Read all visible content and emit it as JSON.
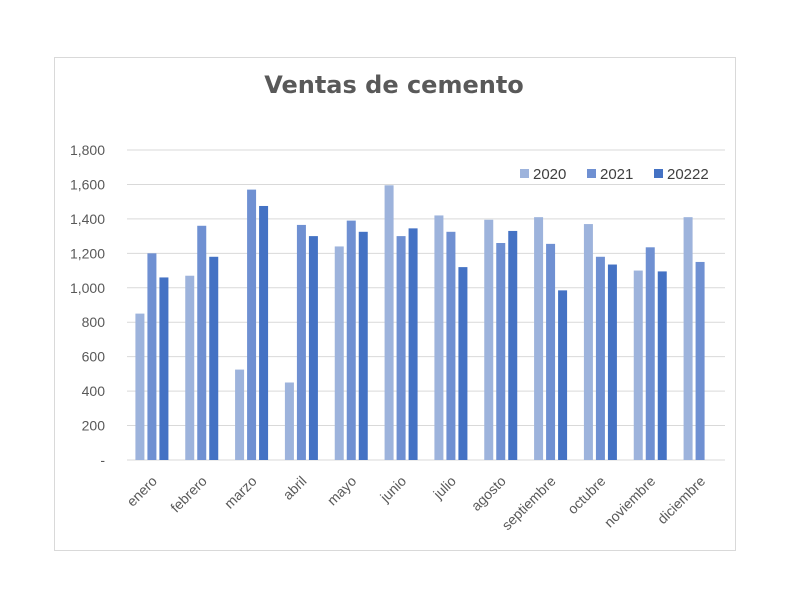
{
  "chart_data": {
    "type": "bar",
    "title": "Ventas de cemento",
    "xlabel": "",
    "ylabel": "",
    "categories": [
      "enero",
      "febrero",
      "marzo",
      "abril",
      "mayo",
      "junio",
      "julio",
      "agosto",
      "septiembre",
      "octubre",
      "noviembre",
      "diciembre"
    ],
    "series": [
      {
        "name": "2020",
        "color": "#9db3dc",
        "values": [
          850,
          1070,
          525,
          450,
          1240,
          1595,
          1420,
          1395,
          1410,
          1370,
          1100,
          1410
        ]
      },
      {
        "name": "2021",
        "color": "#6f90d2",
        "values": [
          1200,
          1360,
          1570,
          1365,
          1390,
          1300,
          1325,
          1260,
          1255,
          1180,
          1235,
          1150
        ]
      },
      {
        "name": "20222",
        "color": "#4472c4",
        "values": [
          1060,
          1180,
          1475,
          1300,
          1325,
          1345,
          1120,
          1330,
          985,
          1135,
          1095,
          null
        ]
      }
    ],
    "ylim": [
      0,
      1800
    ],
    "y_ticks": [
      0,
      200,
      400,
      600,
      800,
      1000,
      1200,
      1400,
      1600,
      1800
    ],
    "y_tick_labels": [
      "-",
      "200",
      "400",
      "600",
      "800",
      "1,000",
      "1,200",
      "1,400",
      "1,600",
      "1,800"
    ],
    "legend_position": "top-right",
    "grid": true
  }
}
